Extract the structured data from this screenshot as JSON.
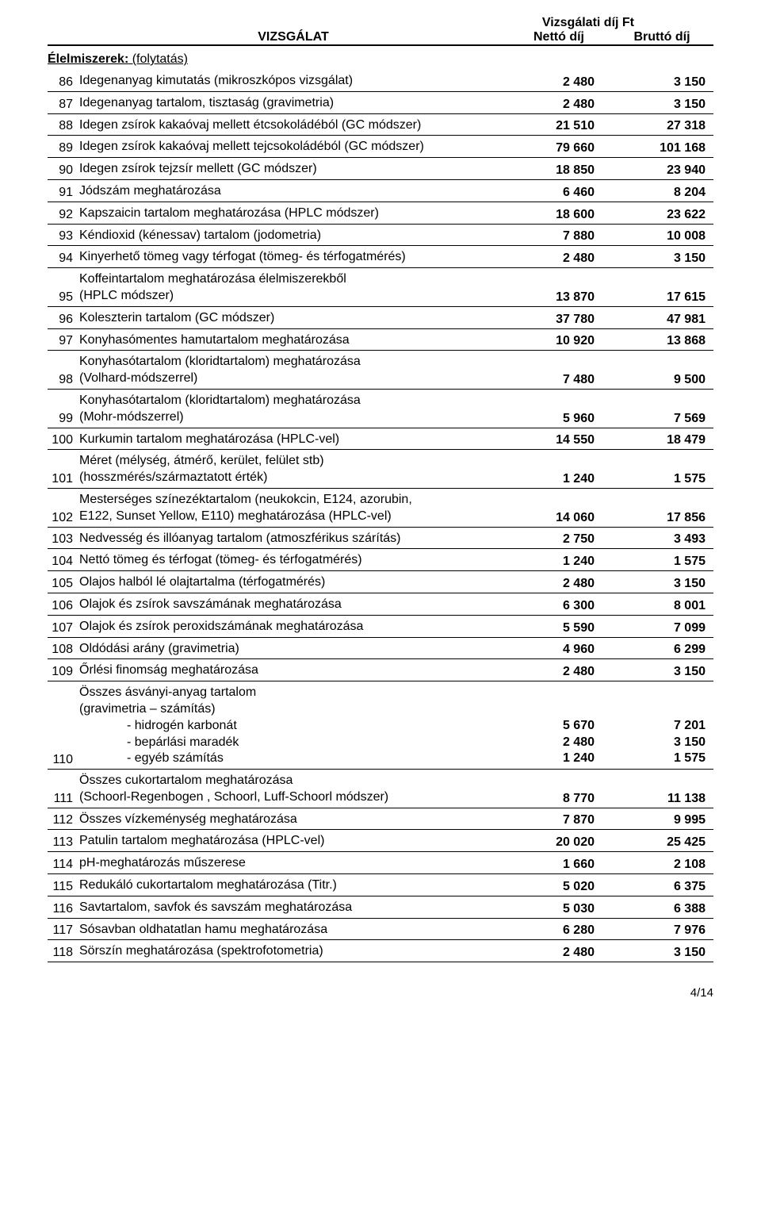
{
  "header": {
    "fee_title": "Vizsgálati díj Ft",
    "col_desc": "VIZSGÁLAT",
    "col_net": "Nettó díj",
    "col_gross": "Bruttó díj"
  },
  "section": {
    "title": "Élelmiszerek:",
    "sub": " (folytatás)"
  },
  "rows": [
    {
      "n": "86",
      "d": "Idegenanyag kimutatás (mikroszkópos vizsgálat)",
      "net": "2 480",
      "gross": "3 150"
    },
    {
      "n": "87",
      "d": "Idegenanyag tartalom, tisztaság (gravimetria)",
      "net": "2 480",
      "gross": "3 150"
    },
    {
      "n": "88",
      "d": "Idegen zsírok kakaóvaj mellett étcsokoládéból (GC módszer)",
      "net": "21 510",
      "gross": "27 318"
    },
    {
      "n": "89",
      "d": "Idegen zsírok kakaóvaj mellett tejcsokoládéból (GC módszer)",
      "net": "79 660",
      "gross": "101 168"
    },
    {
      "n": "90",
      "d": "Idegen zsírok tejzsír mellett (GC módszer)",
      "net": "18 850",
      "gross": "23 940"
    },
    {
      "n": "91",
      "d": "Jódszám meghatározása",
      "net": "6 460",
      "gross": "8 204"
    },
    {
      "n": "92",
      "d": "Kapszaicin tartalom meghatározása (HPLC módszer)",
      "net": "18 600",
      "gross": "23 622"
    },
    {
      "n": "93",
      "d": "Kéndioxid (kénessav) tartalom (jodometria)",
      "net": "7 880",
      "gross": "10 008"
    },
    {
      "n": "94",
      "d": "Kinyerhető tömeg vagy térfogat (tömeg- és térfogatmérés)",
      "net": "2 480",
      "gross": "3 150"
    },
    {
      "n": "95",
      "d": "Koffeintartalom meghatározása élelmiszerekből\n(HPLC módszer)",
      "net": "13 870",
      "gross": "17 615"
    },
    {
      "n": "96",
      "d": "Koleszterin tartalom (GC módszer)",
      "net": "37 780",
      "gross": "47 981"
    },
    {
      "n": "97",
      "d": "Konyhasómentes hamutartalom meghatározása",
      "net": "10 920",
      "gross": "13 868"
    },
    {
      "n": "98",
      "d": "Konyhasótartalom (kloridtartalom) meghatározása\n(Volhard-módszerrel)",
      "net": "7 480",
      "gross": "9 500"
    },
    {
      "n": "99",
      "d": "Konyhasótartalom (kloridtartalom) meghatározása\n(Mohr-módszerrel)",
      "net": "5 960",
      "gross": "7 569"
    },
    {
      "n": "100",
      "d": "Kurkumin tartalom meghatározása (HPLC-vel)",
      "net": "14 550",
      "gross": "18 479"
    },
    {
      "n": "101",
      "d": "Méret (mélység, átmérő, kerület, felület stb)\n(hosszmérés/származtatott érték)",
      "net": "1 240",
      "gross": "1 575"
    },
    {
      "n": "102",
      "d": "Mesterséges színezéktartalom (neukokcin, E124, azorubin,\nE122, Sunset Yellow, E110) meghatározása (HPLC-vel)",
      "net": "14 060",
      "gross": "17 856"
    },
    {
      "n": "103",
      "d": "Nedvesség és illóanyag tartalom (atmoszférikus szárítás)",
      "net": "2 750",
      "gross": "3 493"
    },
    {
      "n": "104",
      "d": "Nettó tömeg és térfogat (tömeg- és térfogatmérés)",
      "net": "1 240",
      "gross": "1 575"
    },
    {
      "n": "105",
      "d": "Olajos halból lé olajtartalma (térfogatmérés)",
      "net": "2 480",
      "gross": "3 150"
    },
    {
      "n": "106",
      "d": "Olajok és zsírok savszámának meghatározása",
      "net": "6 300",
      "gross": "8 001"
    },
    {
      "n": "107",
      "d": "Olajok és zsírok peroxidszámának meghatározása",
      "net": "5 590",
      "gross": "7 099"
    },
    {
      "n": "108",
      "d": "Oldódási arány (gravimetria)",
      "net": "4 960",
      "gross": "6 299"
    },
    {
      "n": "109",
      "d": "Őrlési finomság meghatározása",
      "net": "2 480",
      "gross": "3 150"
    },
    {
      "n": "110",
      "d": "Összes ásványi-anyag tartalom\n (gravimetria – számítás)",
      "sublist": [
        "-      hidrogén karbonát",
        "-      bepárlási maradék",
        "-      egyéb számítás"
      ],
      "net": "5 670\n2 480\n1 240",
      "gross": "7 201\n3 150\n1 575",
      "multi": true
    },
    {
      "n": "111",
      "d": "Összes cukortartalom meghatározása\n(Schoorl-Regenbogen , Schoorl, Luff-Schoorl módszer)",
      "net": "8 770",
      "gross": "11 138"
    },
    {
      "n": "112",
      "d": "Összes vízkeménység meghatározása",
      "net": "7 870",
      "gross": "9 995"
    },
    {
      "n": "113",
      "d": "Patulin tartalom meghatározása (HPLC-vel)",
      "net": "20 020",
      "gross": "25 425"
    },
    {
      "n": "114",
      "d": "pH-meghatározás műszerese",
      "net": "1 660",
      "gross": "2 108"
    },
    {
      "n": "115",
      "d": "Redukáló cukortartalom meghatározása (Titr.)",
      "net": "5 020",
      "gross": "6 375"
    },
    {
      "n": "116",
      "d": "Savtartalom, savfok és savszám meghatározása",
      "net": "5 030",
      "gross": "6 388"
    },
    {
      "n": "117",
      "d": "Sósavban oldhatatlan hamu meghatározása",
      "net": "6 280",
      "gross": "7 976"
    },
    {
      "n": "118",
      "d": "Sörszín meghatározása (spektrofotometria)",
      "net": "2 480",
      "gross": "3 150"
    }
  ],
  "page_number": "4/14"
}
